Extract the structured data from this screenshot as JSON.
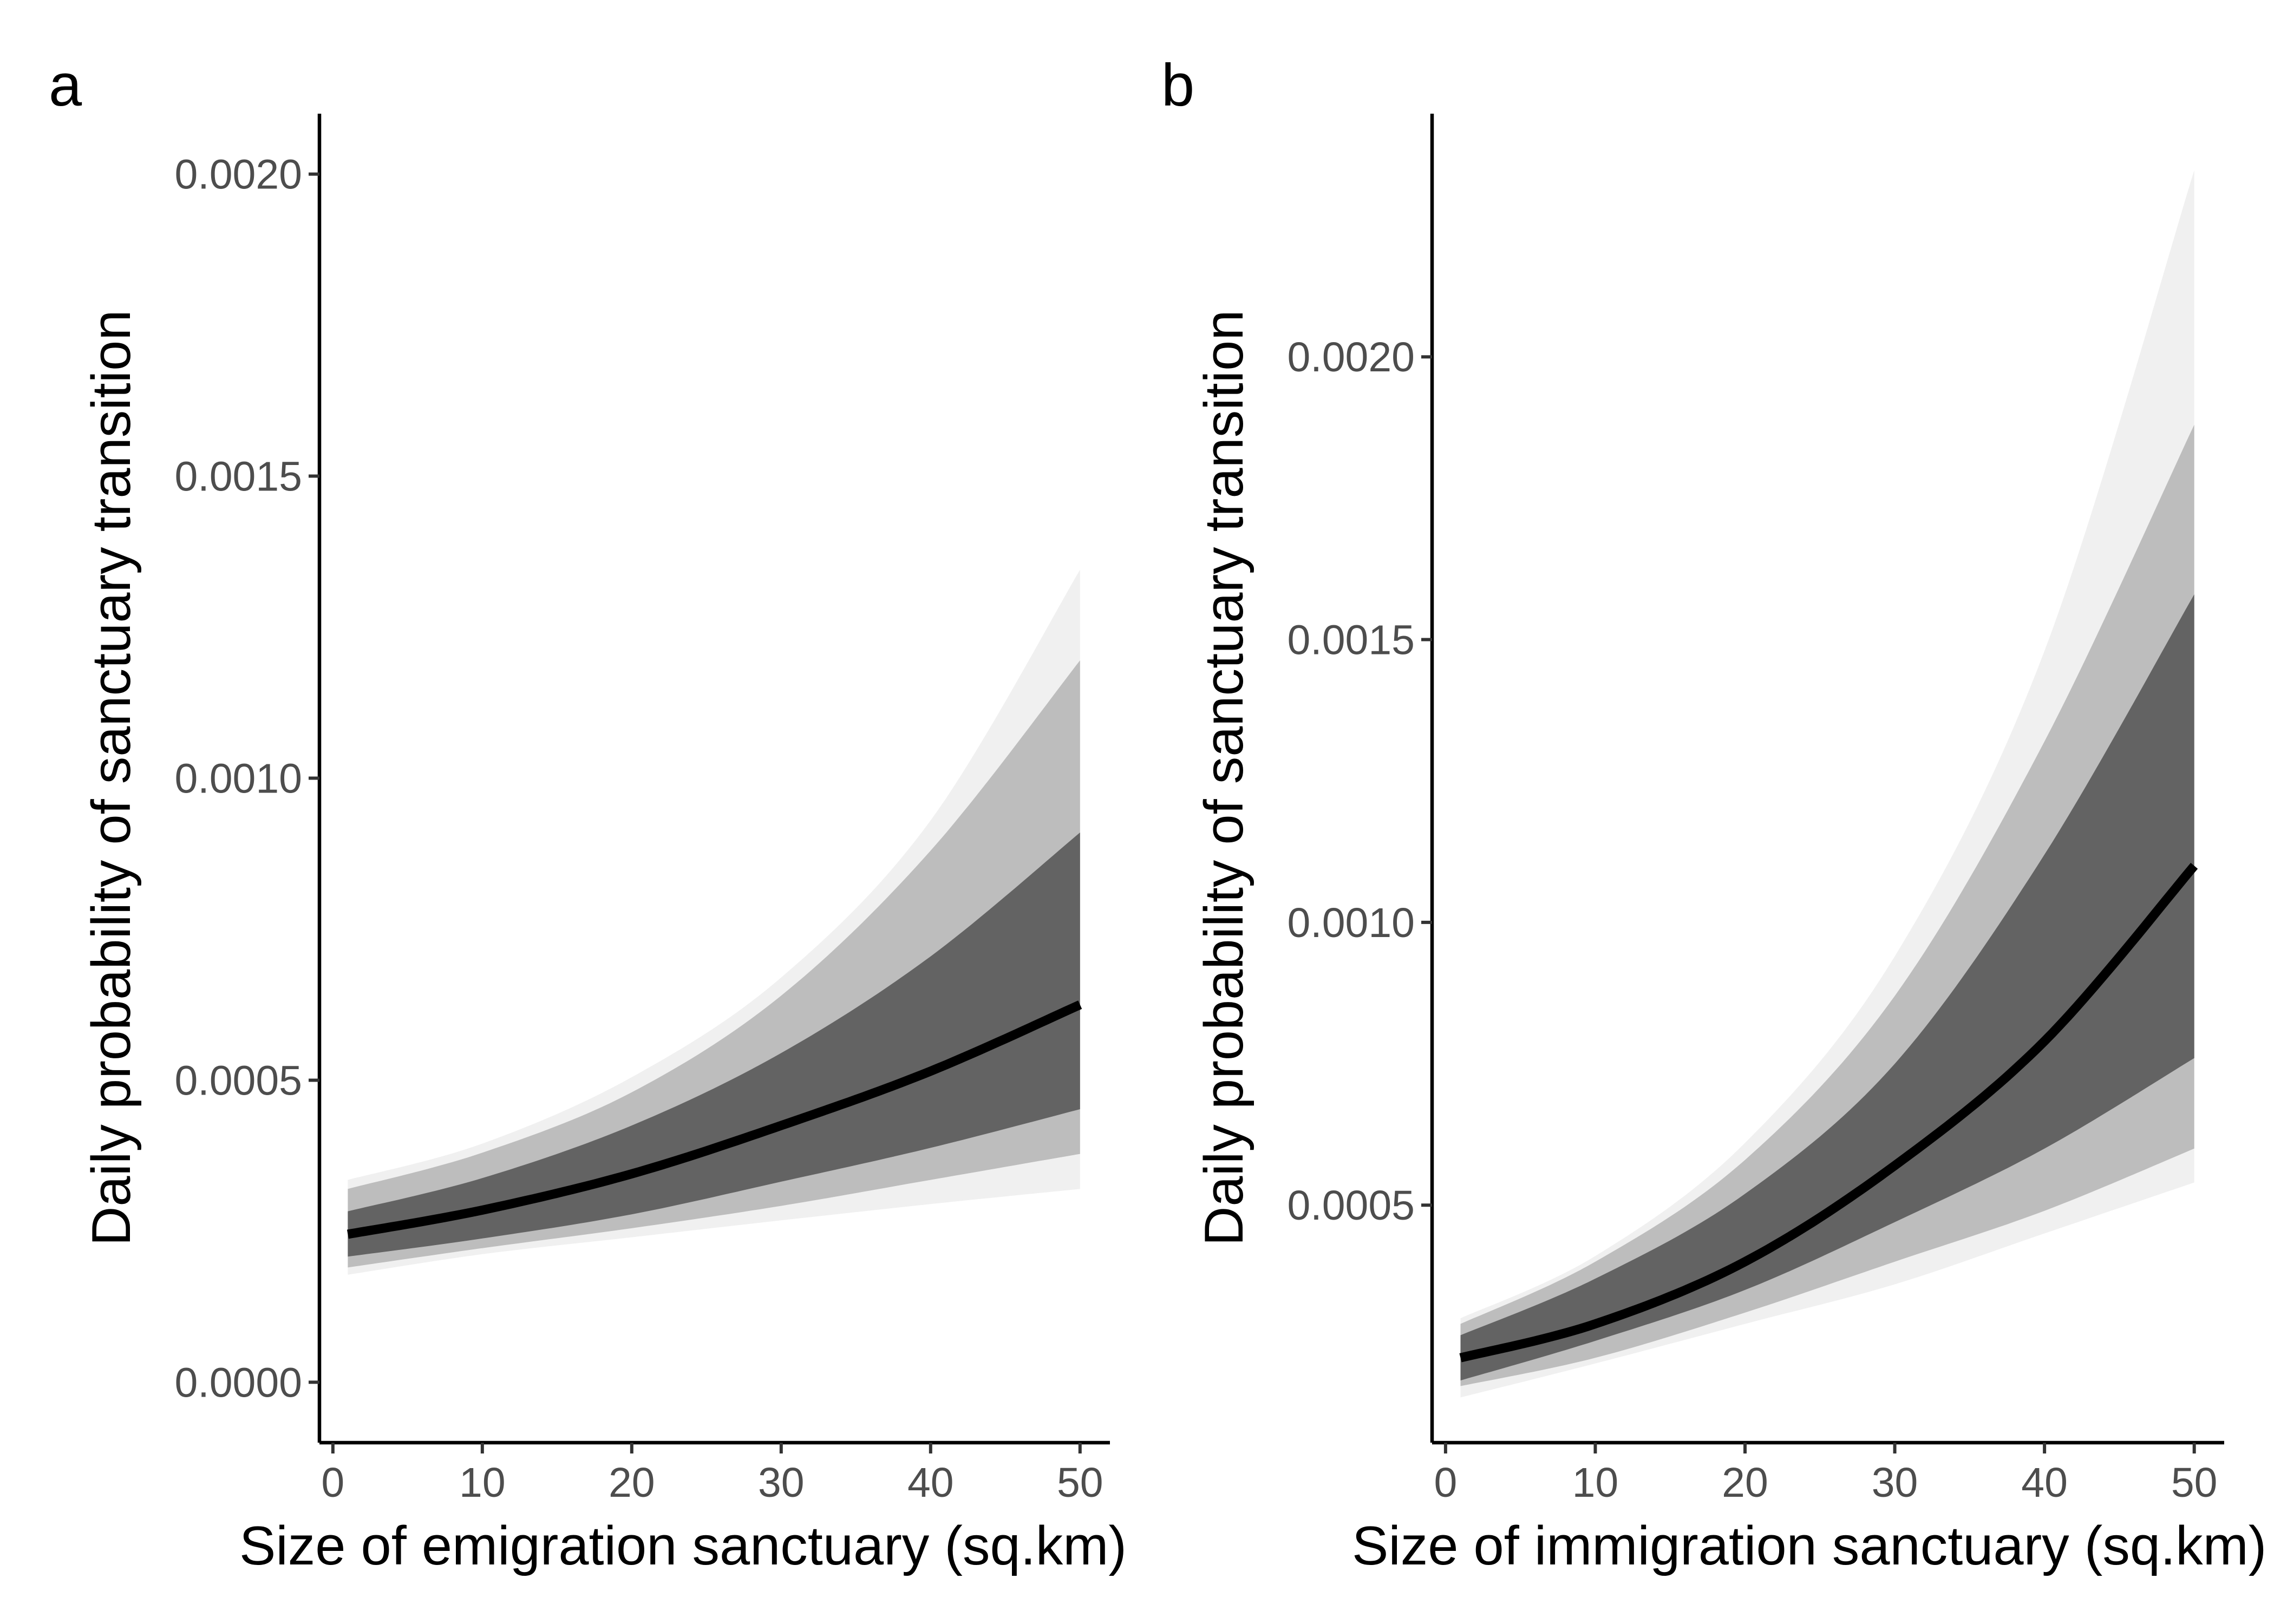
{
  "colors": {
    "band_outer": "#f0f0f0",
    "band_middle": "#bdbdbd",
    "band_inner": "#636363",
    "line": "#000000",
    "axis": "#000000",
    "tick_text": "#4d4d4d"
  },
  "chart_data": [
    {
      "type": "area",
      "panel_label": "a",
      "title": "",
      "xlabel": "Size of emigration sanctuary (sq.km)",
      "ylabel": "Daily probability of sanctuary transition",
      "xlim": [
        -0.9,
        52
      ],
      "ylim": [
        -0.0001,
        0.0021
      ],
      "x_ticks": [
        0,
        10,
        20,
        30,
        40,
        50
      ],
      "x_tick_labels": [
        "0",
        "10",
        "20",
        "30",
        "40",
        "50"
      ],
      "y_ticks": [
        0.0,
        0.0005,
        0.001,
        0.0015,
        0.002
      ],
      "y_tick_labels": [
        "0.0000",
        "0.0005",
        "0.0010",
        "0.0015",
        "0.0020"
      ],
      "grid": false,
      "legend": "none",
      "x": [
        1,
        10,
        20,
        30,
        40,
        50
      ],
      "series": [
        {
          "role": "outer_band_upper",
          "values": [
            0.000335,
            0.000395,
            0.000505,
            0.00067,
            0.00093,
            0.001345
          ]
        },
        {
          "role": "outer_band_lower",
          "values": [
            0.000178,
            0.000212,
            0.00024,
            0.000268,
            0.000295,
            0.00032
          ]
        },
        {
          "role": "middle_band_upper",
          "values": [
            0.00032,
            0.00038,
            0.00048,
            0.00064,
            0.00088,
            0.001195
          ]
        },
        {
          "role": "middle_band_lower",
          "values": [
            0.00019,
            0.000222,
            0.000255,
            0.000292,
            0.000335,
            0.000378
          ]
        },
        {
          "role": "inner_band_upper",
          "values": [
            0.000283,
            0.000338,
            0.000425,
            0.000545,
            0.000705,
            0.00091
          ]
        },
        {
          "role": "inner_band_lower",
          "values": [
            0.000208,
            0.000238,
            0.000278,
            0.000332,
            0.000388,
            0.000452
          ]
        },
        {
          "role": "median_line",
          "values": [
            0.000245,
            0.000285,
            0.000345,
            0.000425,
            0.000515,
            0.000625
          ]
        }
      ]
    },
    {
      "type": "area",
      "panel_label": "b",
      "title": "",
      "xlabel": "Size of immigration sanctuary (sq.km)",
      "ylabel": "Daily probability of sanctuary transition",
      "xlim": [
        -0.9,
        52
      ],
      "ylim": [
        8e-05,
        0.00243
      ],
      "x_ticks": [
        0,
        10,
        20,
        30,
        40,
        50
      ],
      "x_tick_labels": [
        "0",
        "10",
        "20",
        "30",
        "40",
        "50"
      ],
      "y_ticks": [
        0.0005,
        0.001,
        0.0015,
        0.002
      ],
      "y_tick_labels": [
        "0.0005",
        "0.0010",
        "0.0015",
        "0.0020"
      ],
      "grid": false,
      "legend": "none",
      "x": [
        1,
        10,
        20,
        30,
        40,
        50
      ],
      "series": [
        {
          "role": "outer_band_upper",
          "values": [
            0.0003,
            0.00041,
            0.00061,
            0.00094,
            0.00148,
            0.00233
          ]
        },
        {
          "role": "outer_band_lower",
          "values": [
            0.00016,
            0.00022,
            0.00029,
            0.00036,
            0.00045,
            0.00054
          ]
        },
        {
          "role": "middle_band_upper",
          "values": [
            0.00029,
            0.0004,
            0.00058,
            0.00087,
            0.00132,
            0.00188
          ]
        },
        {
          "role": "middle_band_lower",
          "values": [
            0.00018,
            0.00023,
            0.00031,
            0.0004,
            0.00049,
            0.0006
          ]
        },
        {
          "role": "inner_band_upper",
          "values": [
            0.00027,
            0.00037,
            0.00052,
            0.00075,
            0.00112,
            0.00158
          ]
        },
        {
          "role": "inner_band_lower",
          "values": [
            0.00019,
            0.00026,
            0.00035,
            0.00047,
            0.0006,
            0.00076
          ]
        },
        {
          "role": "median_line",
          "values": [
            0.00023,
            0.00029,
            0.0004,
            0.00057,
            0.00079,
            0.0011
          ]
        }
      ]
    }
  ]
}
